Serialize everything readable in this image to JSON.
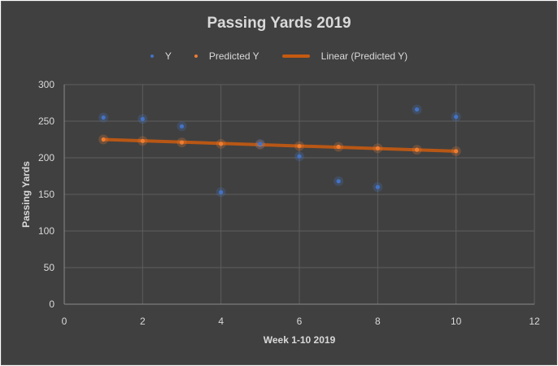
{
  "chart_data": {
    "type": "scatter",
    "title": "Passing Yards 2019",
    "xlabel": "Week 1-10 2019",
    "ylabel": "Passing Yards",
    "xlim": [
      0,
      12
    ],
    "ylim": [
      0,
      300
    ],
    "x_ticks": [
      "0",
      "2",
      "4",
      "6",
      "8",
      "10",
      "12"
    ],
    "y_ticks": [
      "0",
      "50",
      "100",
      "150",
      "200",
      "250",
      "300"
    ],
    "grid": true,
    "legend_position": "top",
    "series": [
      {
        "name": "Y",
        "color": "#4472c4",
        "x": [
          1,
          2,
          3,
          4,
          5,
          6,
          7,
          8,
          9,
          10
        ],
        "y": [
          255,
          253,
          243,
          153,
          219,
          202,
          168,
          160,
          266,
          256
        ]
      },
      {
        "name": "Predicted Y",
        "color": "#ed7d31",
        "x": [
          1,
          2,
          3,
          4,
          5,
          6,
          7,
          8,
          9,
          10
        ],
        "y": [
          225,
          223,
          221,
          219,
          218,
          216,
          215,
          213,
          211,
          209
        ]
      }
    ],
    "trendline": {
      "name": "Linear (Predicted Y)",
      "color": "#c55a11",
      "x": [
        1,
        10
      ],
      "y": [
        225,
        209
      ]
    }
  }
}
